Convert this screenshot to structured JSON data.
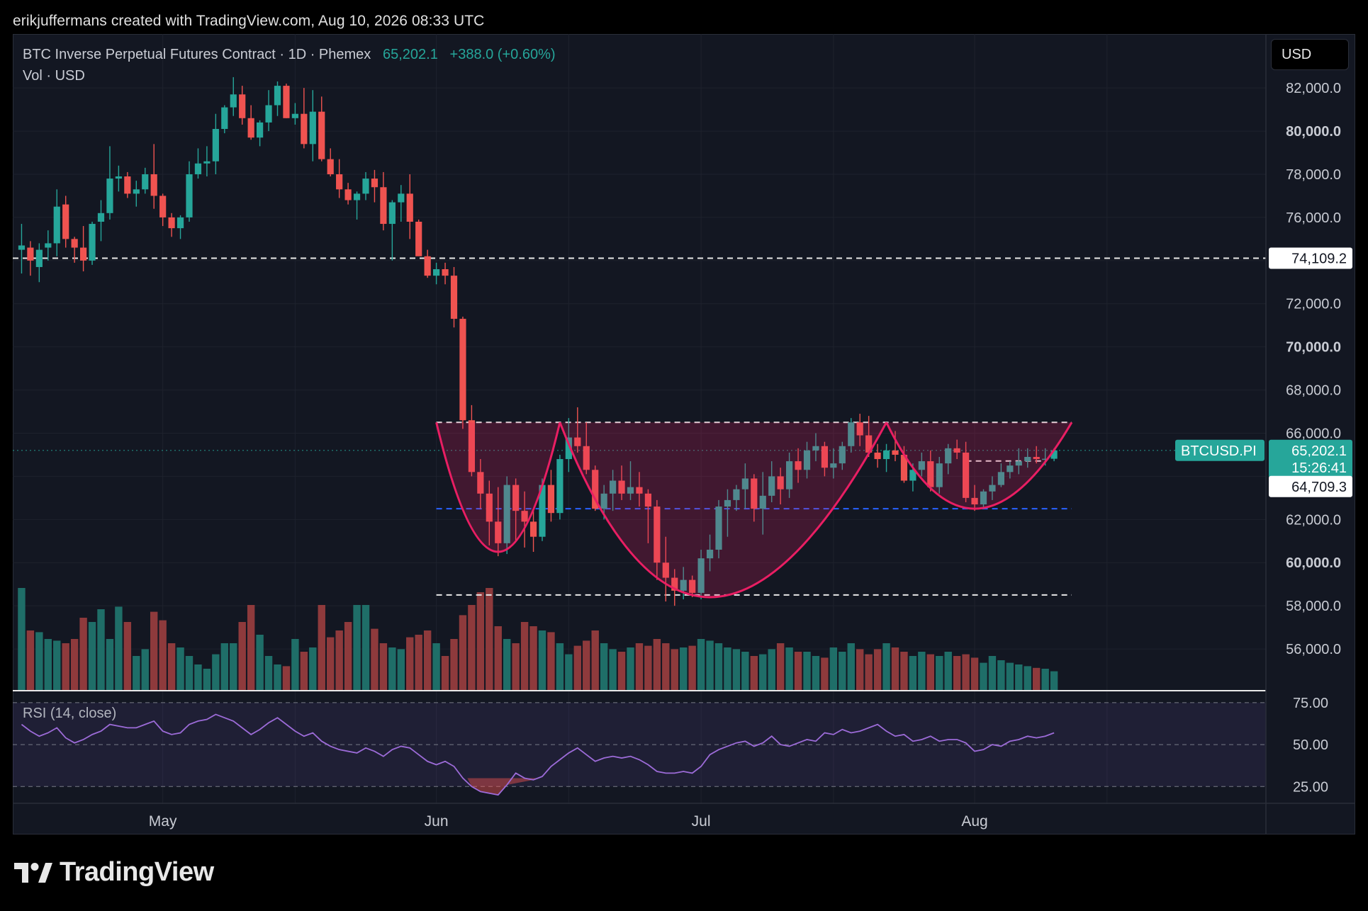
{
  "header": {
    "credit": "erikjuffermans created with TradingView.com, Aug 10, 2026 08:33 UTC"
  },
  "legend": {
    "symbol": "BTC Inverse Perpetual Futures Contract · 1D · Phemex",
    "price": "65,202.1",
    "change": "+388.0 (+0.60%)",
    "volume_label": "Vol · USD"
  },
  "currency_button": "USD",
  "rsi_label": "RSI (14, close)",
  "brand": {
    "name": "TradingView"
  },
  "colors": {
    "up": "#26a69a",
    "down": "#ef5350",
    "pattern": "#e91e63",
    "support": "#2962ff",
    "rsi": "#9c6bd8",
    "background": "#131722"
  },
  "chart_data": {
    "type": "candlestick",
    "title": "BTC Inverse Perpetual Futures Contract · 1D · Phemex",
    "xlabels": [
      "May",
      "Jun",
      "Jul",
      "Aug"
    ],
    "price_axis": {
      "ticks": [
        "82,000.0",
        "80,000.0",
        "78,000.0",
        "76,000.0",
        "72,000.0",
        "70,000.0",
        "68,000.0",
        "66,000.0",
        "62,000.0",
        "60,000.0",
        "58,000.0",
        "56,000.0"
      ],
      "range": [
        54000,
        84500
      ]
    },
    "rsi_axis": {
      "ticks": [
        "75.00",
        "50.00",
        "25.00"
      ],
      "range": [
        15,
        80
      ]
    },
    "price_labels": [
      {
        "name": "level-74109",
        "text": "74,109.2",
        "value": 74109.2
      },
      {
        "name": "symbol",
        "text": "BTCUSD.PI",
        "value": 65202.1
      },
      {
        "name": "last-price",
        "text": "65,202.1",
        "value": 65202.1
      },
      {
        "name": "countdown",
        "text": "15:26:41",
        "value": 65202.1
      },
      {
        "name": "level-64709",
        "text": "64,709.3",
        "value": 64709.3
      }
    ],
    "levels": [
      {
        "name": "resistance-74109",
        "value": 74109.2,
        "style": "dashed-white",
        "from": "start",
        "to": "end"
      },
      {
        "name": "neckline",
        "value": 66500,
        "style": "dashed-white",
        "from": "2026-06-01",
        "to": "2026-08-12"
      },
      {
        "name": "level-64709",
        "value": 64709.3,
        "style": "dashed-white",
        "from": "2026-07-31",
        "to": "2026-08-09"
      },
      {
        "name": "support-62500",
        "value": 62500,
        "style": "dashed-blue",
        "from": "2026-06-01",
        "to": "2026-08-12"
      },
      {
        "name": "low-58500",
        "value": 58500,
        "style": "dashed-white",
        "from": "2026-06-01",
        "to": "2026-08-12"
      }
    ],
    "pattern": {
      "name": "inverse head and shoulders",
      "arcs": [
        {
          "name": "left-shoulder",
          "points": [
            [
              "2026-06-01",
              66500
            ],
            [
              "2026-06-08",
              60500
            ],
            [
              "2026-06-15",
              66500
            ]
          ]
        },
        {
          "name": "head",
          "points": [
            [
              "2026-06-15",
              66500
            ],
            [
              "2026-07-02",
              58400
            ],
            [
              "2026-07-22",
              66500
            ]
          ]
        },
        {
          "name": "right-shoulder",
          "points": [
            [
              "2026-07-22",
              66500
            ],
            [
              "2026-08-01",
              62500
            ],
            [
              "2026-08-12",
              66500
            ]
          ]
        }
      ]
    },
    "candles": [
      [
        "2026-04-15",
        74500,
        75700,
        73400,
        74700,
        120
      ],
      [
        "2026-04-16",
        74600,
        74900,
        73300,
        74000,
        70
      ],
      [
        "2026-04-17",
        73700,
        74800,
        73000,
        74500,
        68
      ],
      [
        "2026-04-18",
        74600,
        75400,
        74000,
        74800,
        60
      ],
      [
        "2026-04-19",
        74800,
        77300,
        74200,
        76500,
        58
      ],
      [
        "2026-04-20",
        76600,
        77000,
        74600,
        75000,
        55
      ],
      [
        "2026-04-21",
        75000,
        75100,
        73900,
        74600,
        60
      ],
      [
        "2026-04-22",
        74600,
        75600,
        73500,
        74000,
        85
      ],
      [
        "2026-04-23",
        74000,
        75800,
        73800,
        75700,
        80
      ],
      [
        "2026-04-24",
        75800,
        76800,
        74900,
        76200,
        95
      ],
      [
        "2026-04-25",
        76200,
        79300,
        75900,
        77800,
        60
      ],
      [
        "2026-04-26",
        77800,
        78400,
        77200,
        77900,
        98
      ],
      [
        "2026-04-27",
        77900,
        78100,
        76900,
        77100,
        80
      ],
      [
        "2026-04-28",
        77100,
        77700,
        76500,
        77300,
        40
      ],
      [
        "2026-04-29",
        77300,
        78300,
        77100,
        78000,
        48
      ],
      [
        "2026-04-30",
        78000,
        79400,
        76400,
        77000,
        92
      ],
      [
        "2026-05-01",
        77000,
        77100,
        75600,
        76000,
        82
      ],
      [
        "2026-05-02",
        76000,
        76200,
        75100,
        75500,
        55
      ],
      [
        "2026-05-03",
        75500,
        76100,
        75000,
        76000,
        50
      ],
      [
        "2026-05-04",
        76000,
        78600,
        75800,
        78000,
        40
      ],
      [
        "2026-05-05",
        78000,
        79200,
        77800,
        78500,
        30
      ],
      [
        "2026-05-06",
        78500,
        79300,
        77900,
        78600,
        25
      ],
      [
        "2026-05-07",
        78600,
        80800,
        78000,
        80100,
        42
      ],
      [
        "2026-05-08",
        80100,
        81200,
        79900,
        81100,
        55
      ],
      [
        "2026-05-09",
        81100,
        82500,
        80700,
        81700,
        55
      ],
      [
        "2026-05-10",
        81700,
        82100,
        80300,
        80600,
        80
      ],
      [
        "2026-05-11",
        80600,
        81200,
        79600,
        79700,
        100
      ],
      [
        "2026-05-12",
        79700,
        80500,
        79300,
        80400,
        65
      ],
      [
        "2026-05-13",
        80400,
        81900,
        80000,
        81200,
        40
      ],
      [
        "2026-05-14",
        81200,
        82300,
        80700,
        82100,
        30
      ],
      [
        "2026-05-15",
        82100,
        82200,
        80600,
        80600,
        28
      ],
      [
        "2026-05-16",
        80600,
        81300,
        80300,
        80800,
        60
      ],
      [
        "2026-05-17",
        80800,
        82000,
        79200,
        79400,
        45
      ],
      [
        "2026-05-18",
        79400,
        81900,
        78600,
        80900,
        50
      ],
      [
        "2026-05-19",
        80900,
        81600,
        78600,
        78700,
        100
      ],
      [
        "2026-05-20",
        78700,
        79200,
        77900,
        78000,
        62
      ],
      [
        "2026-05-21",
        78000,
        78700,
        76900,
        77300,
        70
      ],
      [
        "2026-05-22",
        77300,
        77600,
        76600,
        76800,
        80
      ],
      [
        "2026-05-23",
        76800,
        77200,
        75900,
        77100,
        100
      ],
      [
        "2026-05-24",
        77100,
        78100,
        76800,
        77800,
        100
      ],
      [
        "2026-05-25",
        77800,
        78200,
        76700,
        77400,
        72
      ],
      [
        "2026-05-26",
        77400,
        78100,
        75400,
        75700,
        55
      ],
      [
        "2026-05-27",
        75700,
        76800,
        74000,
        76700,
        50
      ],
      [
        "2026-05-28",
        76700,
        77500,
        75800,
        77100,
        48
      ],
      [
        "2026-05-29",
        77100,
        78000,
        75000,
        75800,
        62
      ],
      [
        "2026-05-30",
        75800,
        75900,
        74400,
        74200,
        65
      ],
      [
        "2026-05-31",
        74200,
        74500,
        73200,
        73300,
        70
      ],
      [
        "2026-06-01",
        73300,
        73900,
        72900,
        73600,
        55
      ],
      [
        "2026-06-02",
        73600,
        73900,
        72900,
        73300,
        40
      ],
      [
        "2026-06-03",
        73300,
        73700,
        70900,
        71300,
        60
      ],
      [
        "2026-06-04",
        71300,
        71400,
        66200,
        66600,
        88
      ],
      [
        "2026-06-05",
        66600,
        67300,
        64000,
        64200,
        100
      ],
      [
        "2026-06-06",
        64200,
        64800,
        62500,
        63200,
        115
      ],
      [
        "2026-06-07",
        63200,
        63800,
        60800,
        61900,
        120
      ],
      [
        "2026-06-08",
        61900,
        63500,
        60300,
        60900,
        75
      ],
      [
        "2026-06-09",
        60900,
        64000,
        60400,
        63600,
        60
      ],
      [
        "2026-06-10",
        63600,
        63900,
        61000,
        62400,
        55
      ],
      [
        "2026-06-11",
        62400,
        63300,
        60700,
        61900,
        80
      ],
      [
        "2026-06-12",
        61900,
        62500,
        60500,
        61200,
        75
      ],
      [
        "2026-06-13",
        61200,
        63900,
        61000,
        63600,
        70
      ],
      [
        "2026-06-14",
        63600,
        64300,
        61900,
        62300,
        68
      ],
      [
        "2026-06-15",
        62300,
        65000,
        62000,
        64800,
        55
      ],
      [
        "2026-06-16",
        64800,
        66700,
        64200,
        65800,
        42
      ],
      [
        "2026-06-17",
        65800,
        67200,
        65100,
        65400,
        52
      ],
      [
        "2026-06-18",
        65400,
        66500,
        64100,
        64300,
        58
      ],
      [
        "2026-06-19",
        64300,
        64500,
        62400,
        62500,
        70
      ],
      [
        "2026-06-20",
        62500,
        63600,
        62000,
        63200,
        55
      ],
      [
        "2026-06-21",
        63200,
        64300,
        62400,
        63800,
        48
      ],
      [
        "2026-06-22",
        63800,
        64500,
        62900,
        63200,
        45
      ],
      [
        "2026-06-23",
        63200,
        64700,
        62900,
        63500,
        50
      ],
      [
        "2026-06-24",
        63500,
        64200,
        62600,
        63200,
        55
      ],
      [
        "2026-06-25",
        63200,
        63400,
        60900,
        62600,
        52
      ],
      [
        "2026-06-26",
        62600,
        62900,
        59200,
        60000,
        60
      ],
      [
        "2026-06-27",
        60000,
        61200,
        58200,
        59300,
        55
      ],
      [
        "2026-06-28",
        59300,
        59700,
        58000,
        58700,
        48
      ],
      [
        "2026-06-29",
        58700,
        59800,
        58300,
        59200,
        50
      ],
      [
        "2026-06-30",
        59200,
        59400,
        58400,
        58600,
        52
      ],
      [
        "2026-07-01",
        58600,
        60600,
        58300,
        60200,
        60
      ],
      [
        "2026-07-02",
        60200,
        61300,
        59600,
        60600,
        58
      ],
      [
        "2026-07-03",
        60600,
        62900,
        60200,
        62600,
        55
      ],
      [
        "2026-07-04",
        62600,
        63400,
        61200,
        62900,
        50
      ],
      [
        "2026-07-05",
        62900,
        63600,
        62400,
        63400,
        48
      ],
      [
        "2026-07-06",
        63400,
        64600,
        62500,
        63900,
        45
      ],
      [
        "2026-07-07",
        63900,
        64100,
        61900,
        62500,
        40
      ],
      [
        "2026-07-08",
        62500,
        64200,
        61300,
        63100,
        42
      ],
      [
        "2026-07-09",
        63100,
        64700,
        62800,
        64000,
        48
      ],
      [
        "2026-07-10",
        64000,
        64400,
        62700,
        63400,
        55
      ],
      [
        "2026-07-11",
        63400,
        65100,
        63000,
        64700,
        50
      ],
      [
        "2026-07-12",
        64700,
        65300,
        63700,
        64300,
        45
      ],
      [
        "2026-07-13",
        64300,
        65600,
        63900,
        65200,
        45
      ],
      [
        "2026-07-14",
        65200,
        66000,
        64700,
        65400,
        40
      ],
      [
        "2026-07-15",
        65400,
        65600,
        64000,
        64400,
        38
      ],
      [
        "2026-07-16",
        64400,
        65300,
        63900,
        64600,
        50
      ],
      [
        "2026-07-17",
        64600,
        65600,
        64300,
        65400,
        45
      ],
      [
        "2026-07-18",
        65400,
        66700,
        65100,
        66500,
        55
      ],
      [
        "2026-07-19",
        66500,
        66900,
        65400,
        65900,
        48
      ],
      [
        "2026-07-20",
        65900,
        66800,
        64900,
        65100,
        42
      ],
      [
        "2026-07-21",
        65100,
        65500,
        64400,
        64800,
        48
      ],
      [
        "2026-07-22",
        64800,
        65500,
        64200,
        65200,
        55
      ],
      [
        "2026-07-23",
        65200,
        66100,
        64700,
        65000,
        50
      ],
      [
        "2026-07-24",
        65000,
        65400,
        63700,
        63800,
        45
      ],
      [
        "2026-07-25",
        63800,
        64600,
        63300,
        64300,
        40
      ],
      [
        "2026-07-26",
        64300,
        65100,
        64000,
        64700,
        45
      ],
      [
        "2026-07-27",
        64700,
        65200,
        63300,
        63500,
        42
      ],
      [
        "2026-07-28",
        63500,
        64900,
        63200,
        64600,
        40
      ],
      [
        "2026-07-29",
        64600,
        65500,
        64100,
        65300,
        45
      ],
      [
        "2026-07-30",
        65300,
        65700,
        64800,
        65100,
        40
      ],
      [
        "2026-07-31",
        65100,
        65600,
        62800,
        63000,
        42
      ],
      [
        "2026-08-01",
        63000,
        63600,
        62400,
        62700,
        38
      ],
      [
        "2026-08-02",
        62700,
        63400,
        62500,
        63300,
        32
      ],
      [
        "2026-08-03",
        63300,
        64000,
        62900,
        63600,
        40
      ],
      [
        "2026-08-04",
        63600,
        64600,
        63500,
        64200,
        35
      ],
      [
        "2026-08-05",
        64200,
        64700,
        63900,
        64500,
        32
      ],
      [
        "2026-08-06",
        64500,
        65300,
        64100,
        64700,
        30
      ],
      [
        "2026-08-07",
        64700,
        65300,
        64400,
        64900,
        28
      ],
      [
        "2026-08-08",
        64900,
        65400,
        64600,
        64800,
        26
      ],
      [
        "2026-08-09",
        64800,
        65300,
        64500,
        64814,
        25
      ],
      [
        "2026-08-10",
        64814,
        65300,
        64700,
        65202,
        22
      ]
    ],
    "rsi": [
      62,
      58,
      55,
      57,
      60,
      54,
      51,
      53,
      56,
      58,
      62,
      61,
      60,
      60,
      62,
      64,
      58,
      56,
      57,
      62,
      64,
      65,
      68,
      66,
      64,
      60,
      56,
      59,
      63,
      66,
      62,
      58,
      55,
      57,
      52,
      49,
      47,
      46,
      45,
      48,
      46,
      43,
      47,
      49,
      48,
      44,
      40,
      38,
      40,
      37,
      30,
      25,
      22,
      21,
      20,
      26,
      33,
      30,
      29,
      31,
      37,
      41,
      45,
      48,
      44,
      40,
      42,
      43,
      42,
      43,
      41,
      38,
      34,
      33,
      33,
      34,
      33,
      37,
      44,
      47,
      49,
      51,
      52,
      49,
      51,
      55,
      50,
      49,
      51,
      53,
      52,
      57,
      56,
      59,
      57,
      58,
      60,
      62,
      58,
      55,
      56,
      52,
      53,
      55,
      52,
      53,
      53,
      51,
      46,
      47,
      50,
      49,
      52,
      53,
      55,
      54,
      55,
      57
    ]
  }
}
